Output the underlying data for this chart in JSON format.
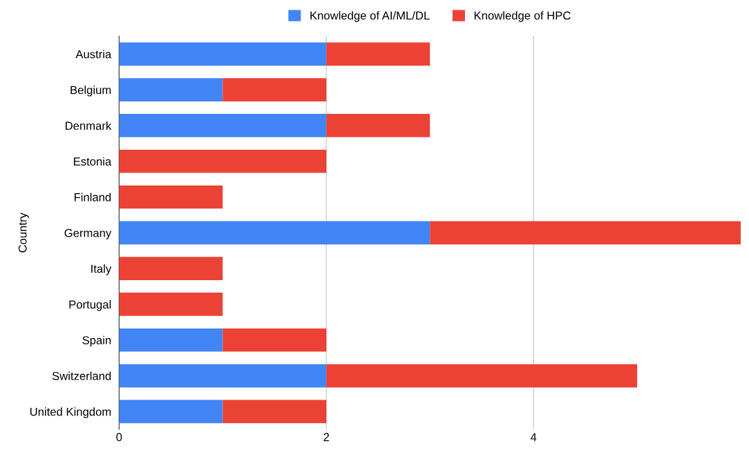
{
  "chart_data": {
    "type": "bar",
    "orientation": "horizontal",
    "stacked": true,
    "ylabel": "Country",
    "categories": [
      "Austria",
      "Belgium",
      "Denmark",
      "Estonia",
      "Finland",
      "Germany",
      "Italy",
      "Portugal",
      "Spain",
      "Switzerland",
      "United Kingdom"
    ],
    "series": [
      {
        "name": "Knowledge of AI/ML/DL",
        "color": "#4285f4",
        "values": [
          2,
          1,
          2,
          0,
          0,
          3,
          0,
          0,
          1,
          2,
          1
        ]
      },
      {
        "name": "Knowledge of HPC",
        "color": "#ea4335",
        "values": [
          1,
          1,
          1,
          2,
          1,
          3,
          1,
          1,
          1,
          3,
          1
        ]
      }
    ],
    "xlim": [
      0,
      6
    ],
    "xticks": [
      0,
      2,
      4
    ],
    "grid": "x",
    "legend": "top"
  }
}
